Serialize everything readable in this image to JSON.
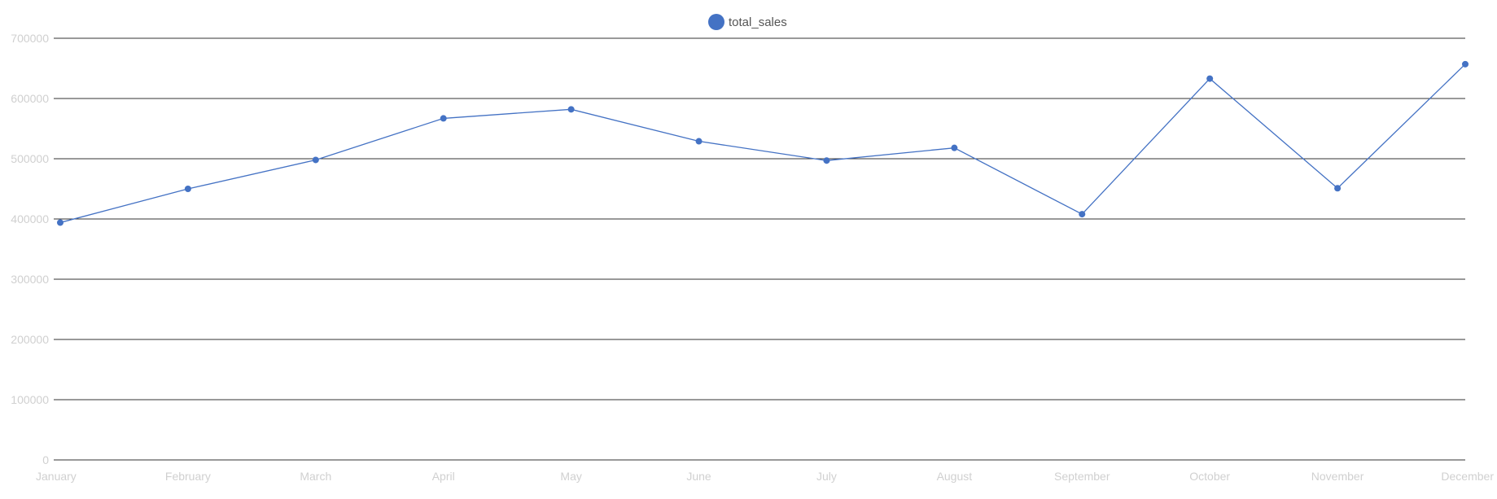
{
  "chart_data": {
    "type": "line",
    "title": "",
    "xlabel": "",
    "ylabel": "",
    "categories": [
      "January",
      "February",
      "March",
      "April",
      "May",
      "June",
      "July",
      "August",
      "September",
      "October",
      "November",
      "December"
    ],
    "series": [
      {
        "name": "total_sales",
        "color": "#4472c4",
        "values": [
          394000,
          450000,
          498000,
          567000,
          582000,
          529000,
          497000,
          518000,
          408000,
          633000,
          451000,
          657000
        ]
      }
    ],
    "ylim": [
      0,
      700000
    ],
    "yticks": [
      0,
      100000,
      200000,
      300000,
      400000,
      500000,
      600000,
      700000
    ],
    "grid": true,
    "legend_position": "top-center"
  }
}
